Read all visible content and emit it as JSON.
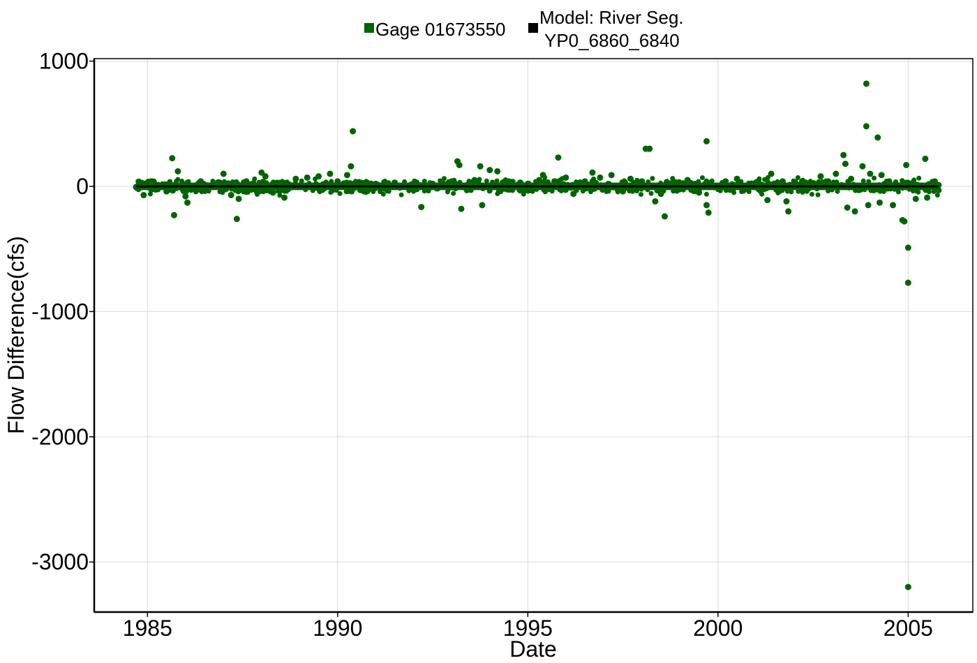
{
  "chart_data": {
    "type": "scatter",
    "xlabel": "Date",
    "ylabel": "Flow Difference(cfs)",
    "xlim": [
      1983.6,
      2006.7
    ],
    "ylim": [
      -3400,
      1020
    ],
    "x_ticks": [
      1985,
      1990,
      1995,
      2000,
      2005
    ],
    "x_tick_labels": [
      "1985",
      "1990",
      "1995",
      "2000",
      "2005"
    ],
    "y_ticks": [
      1000,
      0,
      -1000,
      -2000,
      -3000
    ],
    "y_tick_labels": [
      "1000",
      "0",
      "-1000",
      "-2000",
      "-3000"
    ],
    "grid": true,
    "legend_position": "top",
    "legend": [
      {
        "name": "Gage 01673550",
        "color": "#006400"
      },
      {
        "name_line1": "Model: River Seg.",
        "name_line2": "YP0_6860_6840",
        "color": "#000000"
      }
    ],
    "series": [
      {
        "name": "Gage 01673550",
        "color": "#006400",
        "points": [
          [
            1984.7,
            -5
          ],
          [
            1984.9,
            -70
          ],
          [
            1985.1,
            40
          ],
          [
            1985.5,
            -40
          ],
          [
            1985.65,
            225
          ],
          [
            1985.7,
            -230
          ],
          [
            1985.8,
            120
          ],
          [
            1986.0,
            -80
          ],
          [
            1986.05,
            -130
          ],
          [
            1986.4,
            40
          ],
          [
            1986.9,
            30
          ],
          [
            1987.0,
            100
          ],
          [
            1987.2,
            -70
          ],
          [
            1987.35,
            -260
          ],
          [
            1987.4,
            -100
          ],
          [
            1987.6,
            40
          ],
          [
            1988.0,
            110
          ],
          [
            1988.1,
            80
          ],
          [
            1988.3,
            -50
          ],
          [
            1988.6,
            -90
          ],
          [
            1988.9,
            60
          ],
          [
            1989.2,
            70
          ],
          [
            1989.5,
            80
          ],
          [
            1989.8,
            100
          ],
          [
            1990.0,
            40
          ],
          [
            1990.25,
            90
          ],
          [
            1990.35,
            160
          ],
          [
            1990.4,
            440
          ],
          [
            1990.6,
            -30
          ],
          [
            1991.0,
            20
          ],
          [
            1991.5,
            30
          ],
          [
            1992.0,
            -20
          ],
          [
            1992.2,
            -165
          ],
          [
            1992.5,
            20
          ],
          [
            1993.0,
            40
          ],
          [
            1993.15,
            200
          ],
          [
            1993.2,
            170
          ],
          [
            1993.25,
            -180
          ],
          [
            1993.4,
            -30
          ],
          [
            1993.6,
            50
          ],
          [
            1993.75,
            160
          ],
          [
            1993.8,
            -150
          ],
          [
            1994.0,
            130
          ],
          [
            1994.2,
            120
          ],
          [
            1994.5,
            40
          ],
          [
            1994.8,
            30
          ],
          [
            1995.0,
            20
          ],
          [
            1995.3,
            50
          ],
          [
            1995.4,
            90
          ],
          [
            1995.7,
            40
          ],
          [
            1995.8,
            230
          ],
          [
            1996.0,
            70
          ],
          [
            1996.2,
            -60
          ],
          [
            1996.5,
            40
          ],
          [
            1996.7,
            110
          ],
          [
            1996.9,
            70
          ],
          [
            1997.2,
            90
          ],
          [
            1997.5,
            -40
          ],
          [
            1997.7,
            60
          ],
          [
            1998.0,
            40
          ],
          [
            1998.1,
            300
          ],
          [
            1998.2,
            300
          ],
          [
            1998.35,
            -120
          ],
          [
            1998.5,
            -60
          ],
          [
            1998.6,
            -240
          ],
          [
            1998.9,
            30
          ],
          [
            1999.2,
            50
          ],
          [
            1999.5,
            -50
          ],
          [
            1999.7,
            -150
          ],
          [
            1999.75,
            -210
          ],
          [
            1999.7,
            360
          ],
          [
            2000.2,
            40
          ],
          [
            2000.5,
            60
          ],
          [
            2001.0,
            30
          ],
          [
            2001.3,
            -110
          ],
          [
            2001.4,
            100
          ],
          [
            2001.7,
            40
          ],
          [
            2001.8,
            -120
          ],
          [
            2001.85,
            -200
          ],
          [
            2002.3,
            30
          ],
          [
            2002.7,
            80
          ],
          [
            2002.9,
            40
          ],
          [
            2003.1,
            100
          ],
          [
            2003.3,
            250
          ],
          [
            2003.35,
            180
          ],
          [
            2003.4,
            -170
          ],
          [
            2003.5,
            60
          ],
          [
            2003.6,
            -200
          ],
          [
            2003.8,
            160
          ],
          [
            2003.9,
            820
          ],
          [
            2003.9,
            480
          ],
          [
            2003.95,
            -150
          ],
          [
            2004.0,
            100
          ],
          [
            2004.2,
            390
          ],
          [
            2004.25,
            -130
          ],
          [
            2004.3,
            90
          ],
          [
            2004.5,
            40
          ],
          [
            2004.6,
            -150
          ],
          [
            2004.85,
            -270
          ],
          [
            2004.9,
            -280
          ],
          [
            2004.95,
            170
          ],
          [
            2005.0,
            -490
          ],
          [
            2005.0,
            -770
          ],
          [
            2005.0,
            -3200
          ],
          [
            2005.2,
            -100
          ],
          [
            2005.45,
            220
          ],
          [
            2005.5,
            -90
          ],
          [
            2005.7,
            40
          ],
          [
            2005.8,
            -30
          ],
          [
            2005.8,
            10
          ]
        ]
      },
      {
        "name": "Model: River Seg. YP0_6860_6840",
        "color": "#000000",
        "points": [
          [
            1984.7,
            0
          ],
          [
            2005.8,
            0
          ]
        ]
      }
    ]
  }
}
